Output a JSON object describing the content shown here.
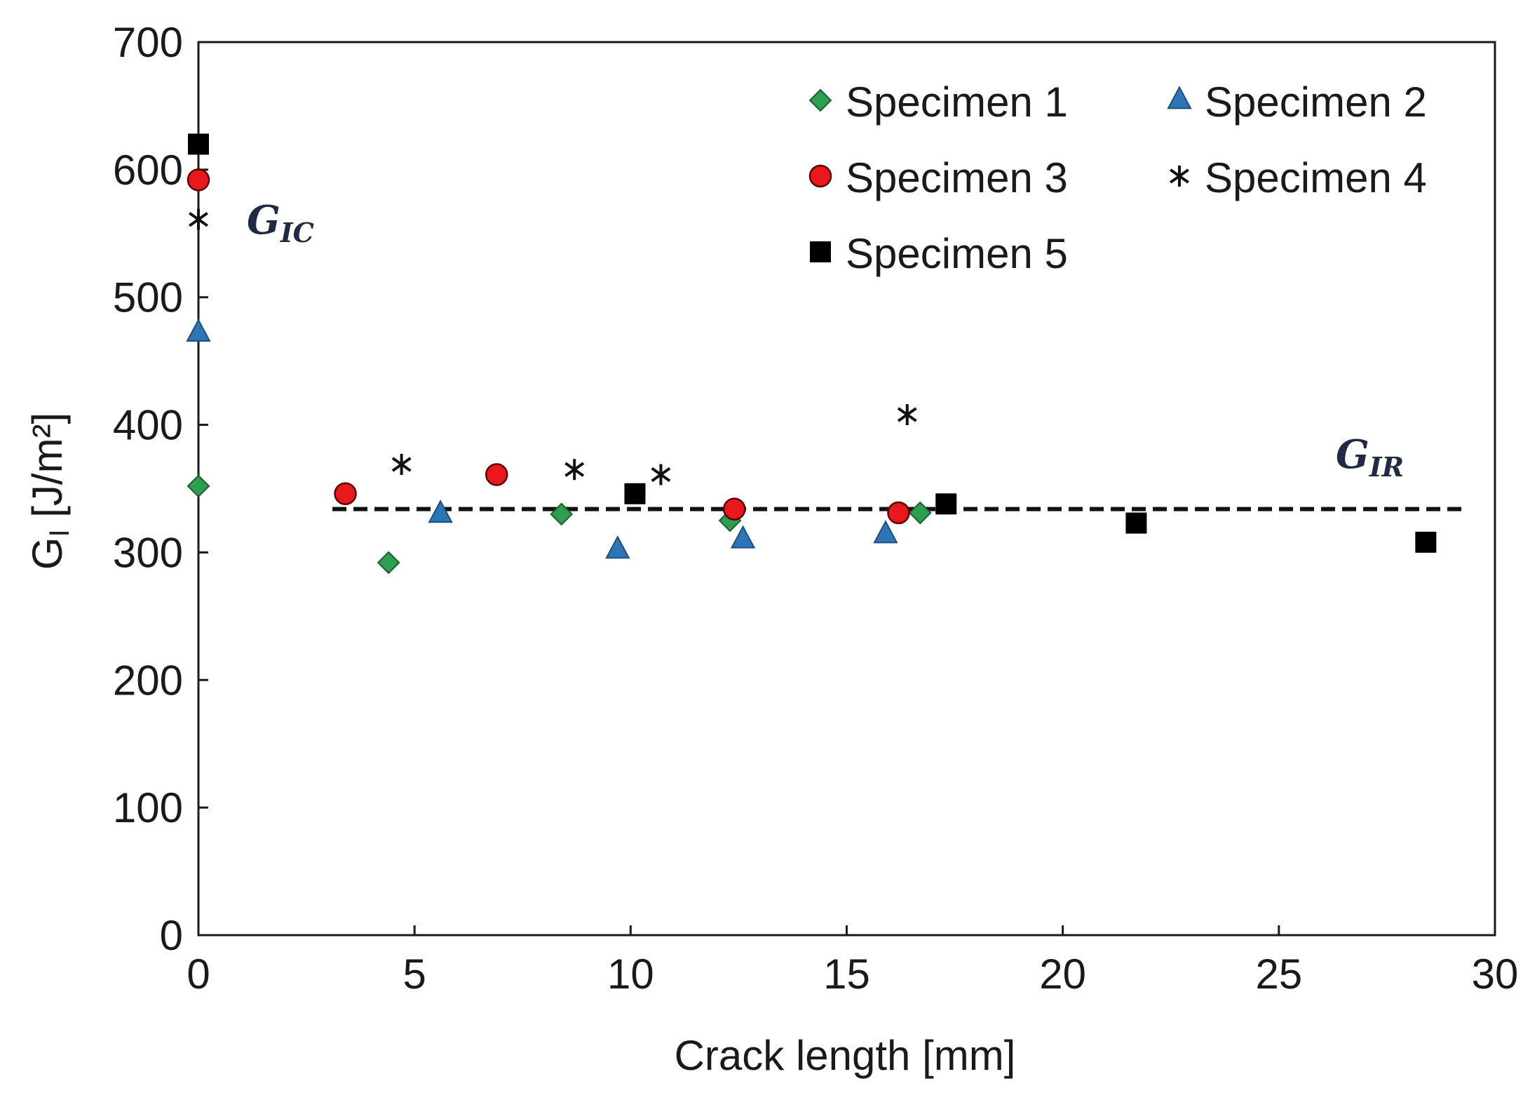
{
  "chart_data": {
    "type": "scatter",
    "title": "",
    "xlabel": "Crack length [mm]",
    "ylabel_main": "G",
    "ylabel_sub": "I",
    "ylabel_unit": " [J/m²]",
    "xlim": [
      0,
      30
    ],
    "ylim": [
      0,
      700
    ],
    "xticks": [
      "0",
      "5",
      "10",
      "15",
      "20",
      "25",
      "30"
    ],
    "yticks": [
      "0",
      "100",
      "200",
      "300",
      "400",
      "500",
      "600",
      "700"
    ],
    "grid": false,
    "legend_position": "top-right",
    "series": [
      {
        "name": "Specimen 1",
        "marker": "diamond",
        "color": "#2e9e4f",
        "x": [
          0,
          4.4,
          8.4,
          12.3,
          16.7
        ],
        "y": [
          352,
          292,
          330,
          325,
          331
        ]
      },
      {
        "name": "Specimen 2",
        "marker": "triangle",
        "color": "#2e75b6",
        "x": [
          0,
          5.6,
          9.7,
          12.6,
          15.9
        ],
        "y": [
          472,
          330,
          302,
          310,
          314
        ]
      },
      {
        "name": "Specimen 3",
        "marker": "circle",
        "color": "#e8181c",
        "x": [
          0,
          3.4,
          6.9,
          12.4,
          16.2
        ],
        "y": [
          592,
          346,
          361,
          334,
          331
        ]
      },
      {
        "name": "Specimen 4",
        "marker": "asterisk",
        "color": "#111111",
        "x": [
          0,
          4.7,
          8.7,
          10.7,
          16.4
        ],
        "y": [
          561,
          369,
          365,
          361,
          408
        ]
      },
      {
        "name": "Specimen 5",
        "marker": "square",
        "color": "#000000",
        "x": [
          0,
          10.1,
          17.3,
          21.7,
          28.4
        ],
        "y": [
          620,
          346,
          338,
          323,
          308
        ]
      }
    ],
    "reference_line": {
      "label": "G_IR",
      "y": 334,
      "x_start": 3.1,
      "x_end": 29.3,
      "style": "dashed"
    },
    "annotations": [
      {
        "id": "gic",
        "main": "G",
        "sub": "IC"
      },
      {
        "id": "gir",
        "main": "G",
        "sub": "IR"
      }
    ]
  }
}
